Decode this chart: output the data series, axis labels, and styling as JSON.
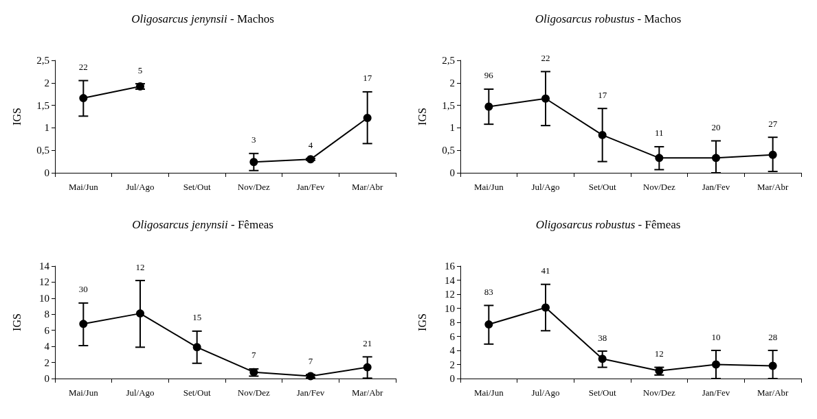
{
  "chart_data": [
    {
      "type": "line",
      "title": "Oligosarcus jenynsii - Machos",
      "ylabel": "IGS",
      "categories": [
        "Mai/Jun",
        "Jul/Ago",
        "Set/Out",
        "Nov/Dez",
        "Jan/Fev",
        "Mar/Abr"
      ],
      "series": [
        {
          "color": "#000000",
          "values": [
            1.66,
            1.92,
            null,
            0.24,
            0.3,
            1.22
          ],
          "errors": [
            [
              1.26,
              2.05
            ],
            [
              1.86,
              1.98
            ],
            null,
            [
              0.05,
              0.43
            ],
            [
              0.28,
              0.32
            ],
            [
              0.65,
              1.8
            ]
          ]
        }
      ],
      "ylim": [
        0,
        2.5
      ],
      "yticks": [
        0,
        {
          "value": 0.5,
          "label": "0,5"
        },
        1,
        {
          "value": 1.5,
          "label": "1,5"
        },
        2,
        {
          "value": 2.5,
          "label": "2,5"
        }
      ],
      "annotations": [
        "22",
        "5",
        "3",
        "4",
        "17"
      ],
      "grid": false,
      "marker": "circle",
      "line_style": "solid"
    },
    {
      "type": "line",
      "title": "Oligosarcus robustus - Machos",
      "ylabel": "IGS",
      "categories": [
        "Mai/Jun",
        "Jul/Ago",
        "Set/Out",
        "Nov/Dez",
        "Jan/Fev",
        "Mar/Abr"
      ],
      "series": [
        {
          "color": "#000000",
          "values": [
            1.47,
            1.65,
            0.84,
            0.33,
            0.33,
            0.4
          ],
          "errors": [
            [
              1.08,
              1.86
            ],
            [
              1.05,
              2.25
            ],
            [
              0.25,
              1.43
            ],
            [
              0.07,
              0.58
            ],
            [
              0,
              0.71
            ],
            [
              0.03,
              0.79
            ]
          ]
        }
      ],
      "ylim": [
        0,
        2.5
      ],
      "yticks": [
        0,
        {
          "value": 0.5,
          "label": "0,5"
        },
        1,
        {
          "value": 1.5,
          "label": "1,5"
        },
        2,
        {
          "value": 2.5,
          "label": "2,5"
        }
      ],
      "annotations": [
        "96",
        "22",
        "17",
        "11",
        "20",
        "27"
      ],
      "grid": false,
      "marker": "circle",
      "line_style": "solid"
    },
    {
      "type": "line",
      "title": "Oligosarcus jenynsii - Fêmeas",
      "ylabel": "IGS",
      "categories": [
        "Mai/Jun",
        "Jul/Ago",
        "Set/Out",
        "Nov/Dez",
        "Jan/Fev",
        "Mar/Abr"
      ],
      "series": [
        {
          "color": "#000000",
          "values": [
            6.8,
            8.1,
            3.9,
            0.8,
            0.3,
            1.4
          ],
          "errors": [
            [
              4.1,
              9.4
            ],
            [
              3.9,
              12.2
            ],
            [
              1.9,
              5.9
            ],
            [
              0.3,
              1.2
            ],
            [
              0.1,
              0.5
            ],
            [
              0.05,
              2.7
            ]
          ]
        }
      ],
      "ylim": [
        0,
        14
      ],
      "yticks": [
        0,
        2,
        4,
        6,
        8,
        10,
        12,
        14
      ],
      "annotations": [
        "30",
        "12",
        "15",
        "7",
        "7",
        "21"
      ],
      "grid": false,
      "marker": "circle",
      "line_style": "solid"
    },
    {
      "type": "line",
      "title": "Oligosarcus robustus - Fêmeas",
      "ylabel": "IGS",
      "categories": [
        "Mai/Jun",
        "Jul/Ago",
        "Set/Out",
        "Nov/Dez",
        "Jan/Fev",
        "Mar/Abr"
      ],
      "series": [
        {
          "color": "#000000",
          "values": [
            7.7,
            10.1,
            2.8,
            1.1,
            2,
            1.8
          ],
          "errors": [
            [
              4.9,
              10.4
            ],
            [
              6.8,
              13.4
            ],
            [
              1.6,
              3.9
            ],
            [
              0.5,
              1.6
            ],
            [
              0,
              4
            ],
            [
              0,
              4
            ]
          ]
        }
      ],
      "ylim": [
        0,
        16
      ],
      "yticks": [
        0,
        2,
        4,
        6,
        8,
        10,
        12,
        14,
        16
      ],
      "annotations": [
        "83",
        "41",
        "38",
        "12",
        "10",
        "28"
      ],
      "grid": false,
      "marker": "circle",
      "line_style": "solid"
    }
  ]
}
